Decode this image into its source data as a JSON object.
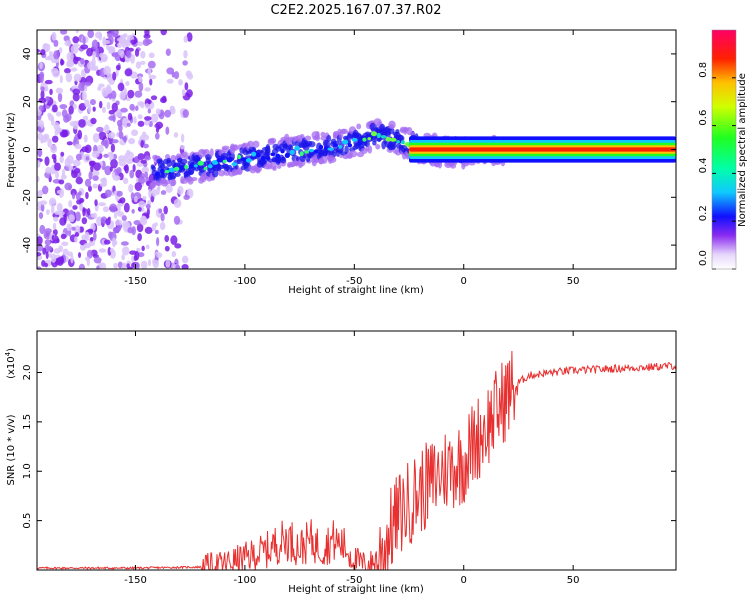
{
  "chart_data": [
    {
      "type": "heatmap",
      "title": "C2E2.2025.167.07.37.R02",
      "xlabel": "Height of straight line (km)",
      "ylabel": "Frequency (Hz)",
      "xlim": [
        -195,
        97
      ],
      "ylim": [
        -50,
        50
      ],
      "xticks": [
        -150,
        -100,
        -50,
        0,
        50
      ],
      "yticks": [
        40,
        20,
        0,
        -20,
        -40
      ],
      "colorbar": {
        "label": "Normalized spectral amplitude",
        "range": [
          0,
          1
        ],
        "ticks": [
          0.0,
          0.2,
          0.4,
          0.6,
          0.8
        ],
        "tick_labels": [
          "0.0",
          "0.2",
          "0.4",
          "0.6",
          "0.8"
        ]
      },
      "ridge": {
        "description_points_x": [
          -142,
          -120,
          -100,
          -80,
          -60,
          -50,
          -40,
          -30,
          -20,
          -10,
          0,
          10,
          20,
          96
        ],
        "frequency": [
          -9,
          -7,
          -4,
          -1,
          1,
          3,
          6,
          4,
          1,
          -1,
          -1,
          0,
          0,
          0
        ]
      }
    },
    {
      "type": "line",
      "xlabel": "Height of straight line (km)",
      "ylabel": "SNR (10 * v/v)",
      "multiplier_label": "(x10",
      "multiplier_exponent": "4",
      "xlim": [
        -195,
        97
      ],
      "ylim": [
        0,
        2.42
      ],
      "xticks": [
        -150,
        -100,
        -50,
        0,
        50
      ],
      "yticks": [
        0.5,
        1.0,
        1.5,
        2.0
      ],
      "ytick_labels": [
        "0.5",
        "1.0",
        "1.5",
        "2.0"
      ],
      "series": [
        {
          "name": "SNR",
          "color": "#e83030",
          "x": [
            -195,
            -150,
            -120,
            -110,
            -100,
            -95,
            -90,
            -85,
            -80,
            -75,
            -70,
            -65,
            -60,
            -55,
            -50,
            -45,
            -40,
            -35,
            -30,
            -25,
            -20,
            -15,
            -10,
            -5,
            0,
            5,
            10,
            15,
            20,
            25,
            30,
            40,
            50,
            60,
            70,
            80,
            90,
            97
          ],
          "values": [
            0.02,
            0.02,
            0.03,
            0.06,
            0.12,
            0.16,
            0.2,
            0.27,
            0.32,
            0.22,
            0.3,
            0.22,
            0.3,
            0.25,
            0.1,
            0.05,
            0.08,
            0.32,
            0.55,
            0.68,
            0.8,
            0.88,
            1.0,
            1.05,
            1.1,
            1.3,
            1.45,
            1.6,
            1.78,
            1.9,
            1.97,
            2.0,
            2.02,
            2.03,
            2.04,
            2.05,
            2.06,
            2.07
          ]
        }
      ]
    }
  ]
}
